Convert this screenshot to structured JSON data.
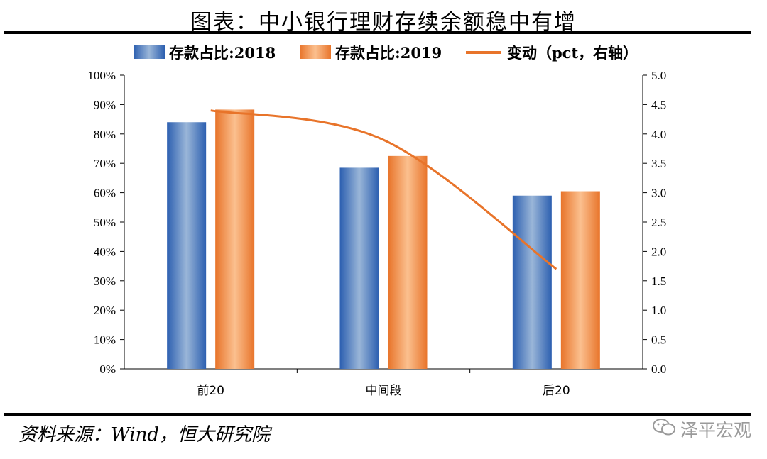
{
  "title": "图表：中小银行理财存续余额稳中有增",
  "source": "资料来源：Wind，恒大研究院",
  "watermark": "泽平宏观",
  "colors": {
    "series_2018": "#3f78c4",
    "series_2019": "#ee7d2f",
    "line": "#e8742a"
  },
  "chart_data": {
    "type": "bar",
    "categories": [
      "前20",
      "中间段",
      "后20"
    ],
    "series": [
      {
        "name": "存款占比:2018",
        "type": "bar",
        "axis": "left",
        "values": [
          84,
          68.5,
          59
        ]
      },
      {
        "name": "存款占比:2019",
        "type": "bar",
        "axis": "left",
        "values": [
          88.3,
          72.5,
          60.5
        ]
      },
      {
        "name": "变动（pct，右轴）",
        "type": "line",
        "axis": "right",
        "values": [
          4.4,
          3.9,
          1.7
        ]
      }
    ],
    "left_axis": {
      "ylim": [
        0,
        100
      ],
      "ticks": [
        "0%",
        "10%",
        "20%",
        "30%",
        "40%",
        "50%",
        "60%",
        "70%",
        "80%",
        "90%",
        "100%"
      ]
    },
    "right_axis": {
      "ylim": [
        0,
        5
      ],
      "ticks": [
        "0.0",
        "0.5",
        "1.0",
        "1.5",
        "2.0",
        "2.5",
        "3.0",
        "3.5",
        "4.0",
        "4.5",
        "5.0"
      ]
    },
    "legend_position": "top",
    "grid": false
  }
}
